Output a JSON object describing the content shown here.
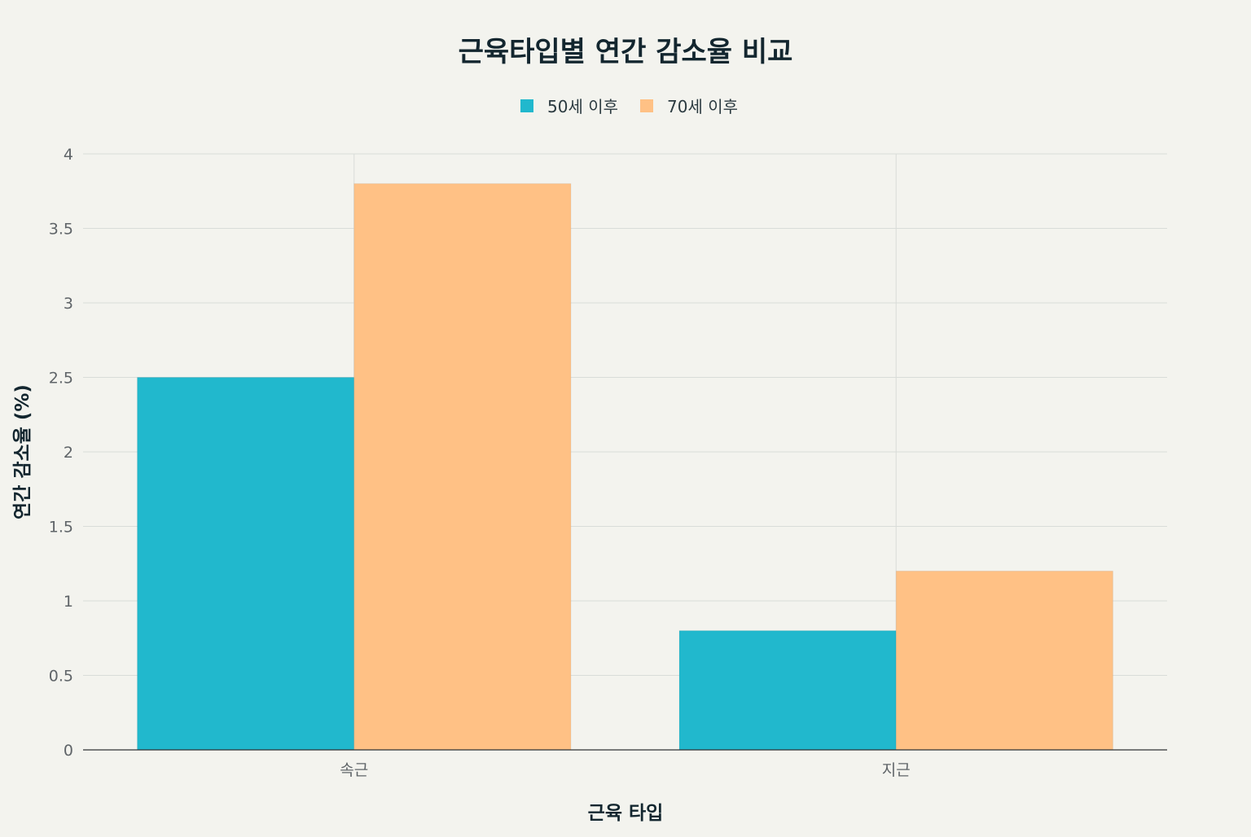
{
  "chart_data": {
    "type": "bar",
    "title": "근육타입별 연간 감소율 비교",
    "xlabel": "근육 타입",
    "ylabel": "연간 감소율 (%)",
    "categories": [
      "속근",
      "지근"
    ],
    "series": [
      {
        "name": "50세 이후",
        "color": "#21b8cd",
        "values": [
          2.5,
          0.8
        ]
      },
      {
        "name": "70세 이후",
        "color": "#ffc185",
        "values": [
          3.8,
          1.2
        ]
      }
    ],
    "ylim": [
      0,
      4
    ],
    "yticks": [
      0,
      0.5,
      1,
      1.5,
      2,
      2.5,
      3,
      3.5,
      4
    ],
    "ytick_labels": [
      "0",
      "0.5",
      "1",
      "1.5",
      "2",
      "2.5",
      "3",
      "3.5",
      "4"
    ],
    "grid": true,
    "legend_position": "top-center",
    "colors": {
      "background": "#f3f3ee",
      "grid": "#d9dcd8",
      "axis": "#2f3336",
      "text": "#13262f"
    }
  }
}
